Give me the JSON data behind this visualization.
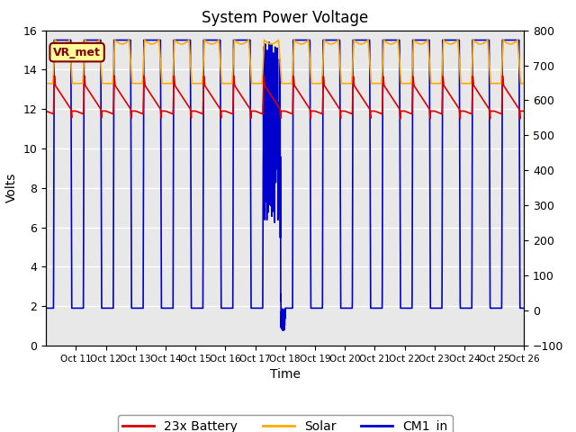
{
  "title": "System Power Voltage",
  "xlabel": "Time",
  "ylabel_left": "Volts",
  "ylim_left": [
    0,
    16
  ],
  "ylim_right": [
    -100,
    800
  ],
  "yticks_left": [
    0,
    2,
    4,
    6,
    8,
    10,
    12,
    14,
    16
  ],
  "yticks_right": [
    -100,
    0,
    100,
    200,
    300,
    400,
    500,
    600,
    700,
    800
  ],
  "xtick_labels": [
    "Oct 11",
    "Oct 12",
    "Oct 13",
    "Oct 14",
    "Oct 15",
    "Oct 16",
    "Oct 17",
    "Oct 18",
    "Oct 19",
    "Oct 20",
    "Oct 21",
    "Oct 22",
    "Oct 23",
    "Oct 24",
    "Oct 25",
    "Oct 26"
  ],
  "bg_color": "#e8e8e8",
  "vr_met_label": "VR_met",
  "legend_labels": [
    "23x Battery",
    "Solar",
    "CM1_in"
  ],
  "colors": {
    "battery": "#dd0000",
    "solar": "#ffaa00",
    "cm1": "#0000cc"
  },
  "title_fontsize": 12,
  "axis_fontsize": 10,
  "night_val": 1.9,
  "day_val": 15.5,
  "battery_base": 11.9,
  "battery_charged": 13.3,
  "solar_base": 13.3,
  "solar_peak": 15.5
}
